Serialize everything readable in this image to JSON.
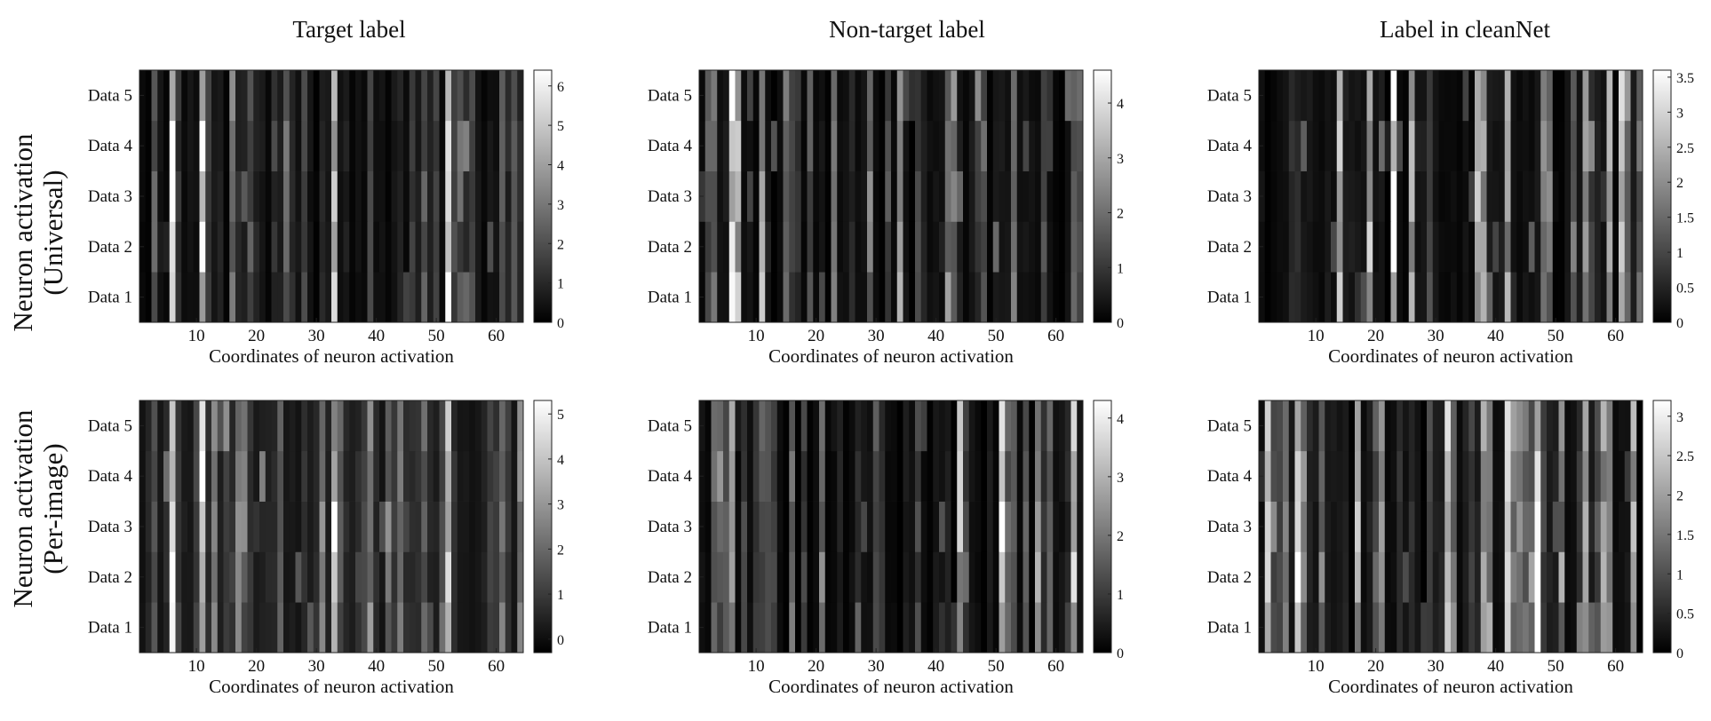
{
  "figure": {
    "column_titles": [
      "Target label",
      "Non-target label",
      "Label in cleanNet"
    ],
    "row_titles": [
      [
        "Neuron activation",
        "(Universal)"
      ],
      [
        "Neuron activation",
        "(Per-image)"
      ]
    ]
  },
  "chart_data": [
    {
      "type": "heatmap",
      "title": "Target label",
      "row_group": "Neuron activation (Universal)",
      "xlabel": "Coordinates of neuron activation",
      "ylabel": "",
      "rows": [
        "Data 1",
        "Data 2",
        "Data 3",
        "Data 4",
        "Data 5"
      ],
      "x_count": 64,
      "xticks": [
        10,
        20,
        30,
        40,
        50,
        60
      ],
      "colorbar": {
        "min": 0,
        "max": 6.4,
        "ticks": [
          0,
          1,
          2,
          3,
          4,
          5,
          6
        ],
        "colormap": "gray"
      },
      "bright_columns": {
        "6": 6.2,
        "11": 5.3,
        "16": 3.1,
        "33": 4.6,
        "52": 5.4,
        "64": 1.2
      },
      "seed": 11,
      "base": 0.8,
      "spread": 2.0
    },
    {
      "type": "heatmap",
      "title": "Non-target label",
      "row_group": "Neuron activation (Universal)",
      "xlabel": "Coordinates of neuron activation",
      "ylabel": "",
      "rows": [
        "Data 1",
        "Data 2",
        "Data 3",
        "Data 4",
        "Data 5"
      ],
      "x_count": 64,
      "xticks": [
        10,
        20,
        30,
        40,
        50,
        60
      ],
      "colorbar": {
        "min": 0,
        "max": 4.6,
        "ticks": [
          0,
          1,
          2,
          3,
          4
        ],
        "colormap": "gray"
      },
      "bright_columns": {
        "6": 4.2,
        "7": 3.4,
        "11": 3.2,
        "34": 2.8,
        "53": 2.4
      },
      "seed": 23,
      "base": 0.5,
      "spread": 1.8
    },
    {
      "type": "heatmap",
      "title": "Label in cleanNet",
      "row_group": "Neuron activation (Universal)",
      "xlabel": "Coordinates of neuron activation",
      "ylabel": "",
      "rows": [
        "Data 1",
        "Data 2",
        "Data 3",
        "Data 4",
        "Data 5"
      ],
      "x_count": 64,
      "xticks": [
        10,
        20,
        30,
        40,
        50,
        60
      ],
      "colorbar": {
        "min": 0,
        "max": 3.6,
        "ticks": [
          0,
          0.5,
          1,
          1.5,
          2,
          2.5,
          3,
          3.5
        ],
        "colormap": "gray"
      },
      "bright_columns": {
        "23": 3.4,
        "14": 2.6,
        "42": 2.2
      },
      "seed": 37,
      "base": 0.4,
      "spread": 2.2
    },
    {
      "type": "heatmap",
      "title": "",
      "row_group": "Neuron activation (Per-image)",
      "xlabel": "Coordinates of neuron activation",
      "ylabel": "",
      "rows": [
        "Data 1",
        "Data 2",
        "Data 3",
        "Data 4",
        "Data 5"
      ],
      "x_count": 64,
      "xticks": [
        10,
        20,
        30,
        40,
        50,
        60
      ],
      "colorbar": {
        "min": -0.3,
        "max": 5.3,
        "ticks": [
          0,
          1,
          2,
          3,
          4,
          5
        ],
        "colormap": "gray"
      },
      "bright_columns": {
        "6": 5.0,
        "11": 4.8,
        "13": 3.2,
        "17": 2.8,
        "33": 3.5,
        "52": 4.2
      },
      "seed": 53,
      "base": 1.0,
      "spread": 1.8
    },
    {
      "type": "heatmap",
      "title": "",
      "row_group": "Neuron activation (Per-image)",
      "xlabel": "Coordinates of neuron activation",
      "ylabel": "",
      "rows": [
        "Data 1",
        "Data 2",
        "Data 3",
        "Data 4",
        "Data 5"
      ],
      "x_count": 64,
      "xticks": [
        10,
        20,
        30,
        40,
        50,
        60
      ],
      "colorbar": {
        "min": 0,
        "max": 4.3,
        "ticks": [
          0,
          1,
          2,
          3,
          4
        ],
        "colormap": "gray"
      },
      "bright_columns": {
        "6": 2.8,
        "44": 3.0,
        "51": 4.1,
        "57": 2.6,
        "63": 3.2
      },
      "seed": 71,
      "base": 0.4,
      "spread": 1.7
    },
    {
      "type": "heatmap",
      "title": "",
      "row_group": "Neuron activation (Per-image)",
      "xlabel": "Coordinates of neuron activation",
      "ylabel": "",
      "rows": [
        "Data 1",
        "Data 2",
        "Data 3",
        "Data 4",
        "Data 5"
      ],
      "x_count": 64,
      "xticks": [
        10,
        20,
        30,
        40,
        50,
        60
      ],
      "colorbar": {
        "min": 0,
        "max": 3.2,
        "ticks": [
          0,
          0.5,
          1,
          1.5,
          2,
          2.5,
          3
        ],
        "colormap": "gray"
      },
      "bright_columns": {
        "7": 2.6,
        "32": 3.1,
        "42": 2.4,
        "47": 2.8
      },
      "seed": 89,
      "base": 0.5,
      "spread": 2.0
    }
  ]
}
